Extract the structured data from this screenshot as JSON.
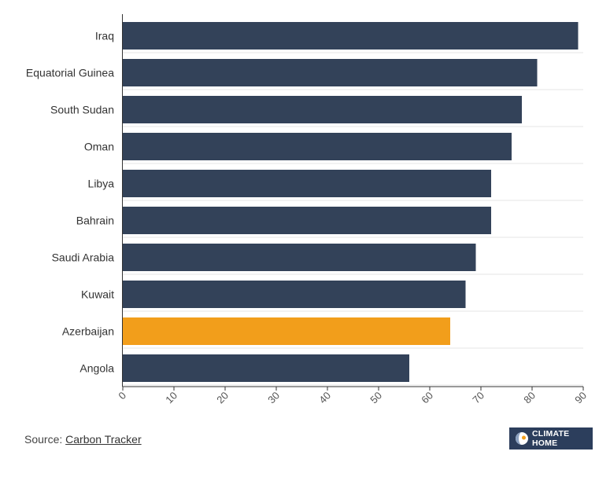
{
  "chart_data": {
    "type": "bar",
    "orientation": "horizontal",
    "categories": [
      "Iraq",
      "Equatorial Guinea",
      "South Sudan",
      "Oman",
      "Libya",
      "Bahrain",
      "Saudi Arabia",
      "Kuwait",
      "Azerbaijan",
      "Angola"
    ],
    "values": [
      89,
      81,
      78,
      76,
      72,
      72,
      69,
      67,
      64,
      56
    ],
    "highlight": "Azerbaijan",
    "xlim": [
      0,
      90
    ],
    "xticks": [
      0,
      10,
      20,
      30,
      40,
      50,
      60,
      70,
      80,
      90
    ],
    "grid": true,
    "colors": {
      "bar": "#334259",
      "highlight": "#f29e1b",
      "grid": "#e6e6e6"
    }
  },
  "footer": {
    "source_label": "Source:",
    "source_link": "Carbon Tracker"
  },
  "logo": {
    "text": "CLIMATE HOME"
  }
}
